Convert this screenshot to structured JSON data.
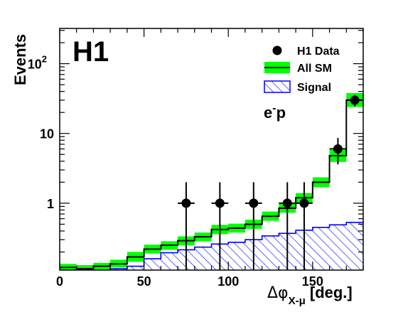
{
  "chart_data": {
    "type": "histogram",
    "experiment_label": "H1",
    "beam_label": "e",
    "beam_label_sup": "-",
    "beam_label_tail": "p",
    "ylabel": "Events",
    "xlabel": {
      "main": "Δφ",
      "sub": "X-μ",
      "unit": " [deg.]"
    },
    "xlim": [
      0,
      180
    ],
    "ylim": [
      0.11,
      320
    ],
    "yscale": "log",
    "x_ticks": [
      0,
      50,
      100,
      150
    ],
    "y_ticks": [
      {
        "value": 1,
        "base": "1",
        "exp": ""
      },
      {
        "value": 10,
        "base": "10",
        "exp": ""
      },
      {
        "value": 100,
        "base": "10",
        "exp": "2"
      }
    ],
    "bin_edges": [
      0,
      10,
      20,
      30,
      40,
      50,
      60,
      70,
      80,
      90,
      100,
      110,
      120,
      130,
      140,
      150,
      160,
      170,
      180
    ],
    "legend": [
      {
        "label": "H1 Data",
        "style": "marker"
      },
      {
        "label": "All SM",
        "style": "band"
      },
      {
        "label": "Signal",
        "style": "hatch"
      }
    ],
    "series": [
      {
        "name": "All SM",
        "values": [
          0.12,
          0.115,
          0.125,
          0.135,
          0.17,
          0.22,
          0.25,
          0.29,
          0.33,
          0.42,
          0.44,
          0.5,
          0.65,
          0.85,
          1.2,
          2.0,
          4.8,
          30
        ],
        "band_low": [
          0.105,
          0.103,
          0.11,
          0.12,
          0.145,
          0.19,
          0.215,
          0.25,
          0.285,
          0.36,
          0.38,
          0.43,
          0.56,
          0.73,
          1.0,
          1.7,
          3.9,
          24
        ],
        "band_high": [
          0.135,
          0.13,
          0.14,
          0.155,
          0.2,
          0.255,
          0.285,
          0.335,
          0.38,
          0.49,
          0.51,
          0.58,
          0.76,
          0.99,
          1.4,
          2.35,
          5.8,
          38
        ],
        "color": "#000000",
        "band_color": "#00ff00"
      },
      {
        "name": "Signal",
        "values": [
          0.108,
          0.108,
          0.11,
          0.115,
          0.125,
          0.16,
          0.195,
          0.215,
          0.235,
          0.26,
          0.275,
          0.3,
          0.34,
          0.37,
          0.41,
          0.45,
          0.49,
          0.53
        ],
        "color": "#0000ff"
      },
      {
        "name": "H1 Data",
        "points": [
          {
            "x": 75,
            "y": 1,
            "xerr": 5,
            "ylow": 0.11,
            "yhigh": 2.0
          },
          {
            "x": 95,
            "y": 1,
            "xerr": 5,
            "ylow": 0.11,
            "yhigh": 2.0
          },
          {
            "x": 115,
            "y": 1,
            "xerr": 5,
            "ylow": 0.11,
            "yhigh": 2.0
          },
          {
            "x": 135,
            "y": 1,
            "xerr": 5,
            "ylow": 0.11,
            "yhigh": 2.0
          },
          {
            "x": 145,
            "y": 1,
            "xerr": 5,
            "ylow": 0.11,
            "yhigh": 2.0
          },
          {
            "x": 165,
            "y": 6,
            "xerr": 5,
            "ylow": 3.6,
            "yhigh": 8.6
          },
          {
            "x": 175,
            "y": 30,
            "xerr": 5,
            "ylow": 24.5,
            "yhigh": 35.5
          }
        ],
        "color": "#000000"
      }
    ]
  }
}
